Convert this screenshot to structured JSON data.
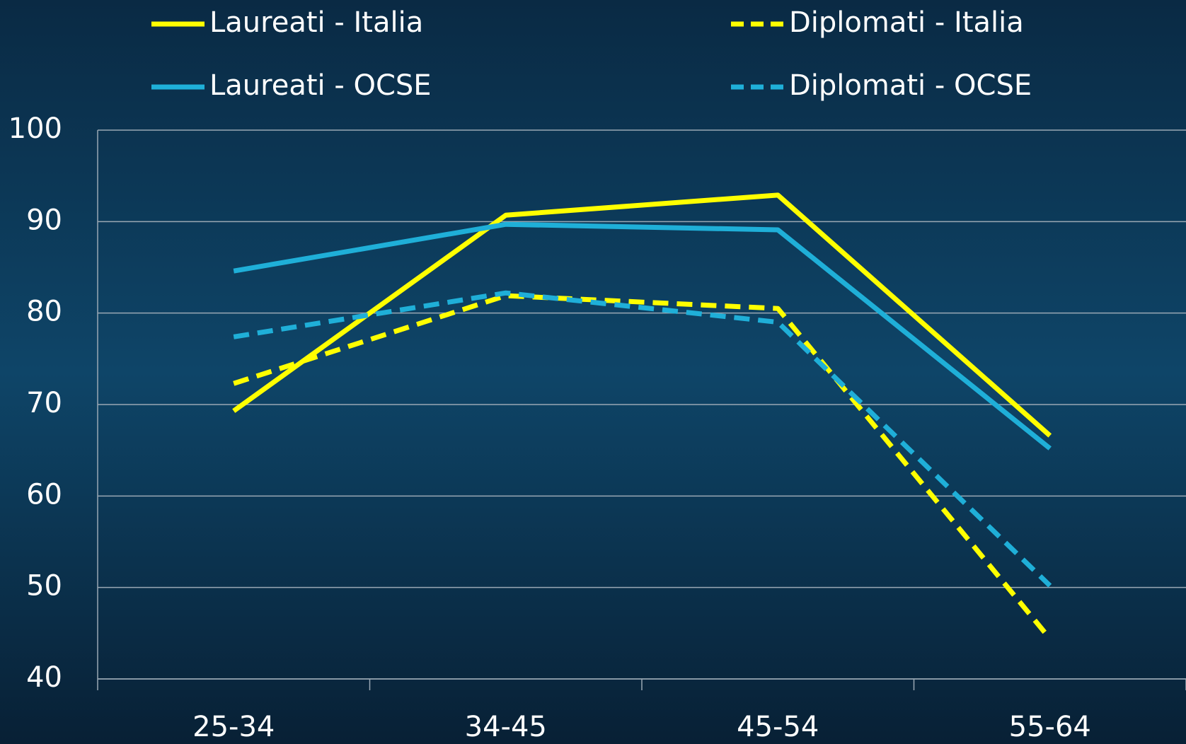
{
  "chart_data": {
    "type": "line",
    "categories": [
      "25-34",
      "34-45",
      "45-54",
      "55-64"
    ],
    "series": [
      {
        "name": "Laureati - Italia",
        "color": "#ffff00",
        "dashed": false,
        "values": [
          69.3,
          90.7,
          92.9,
          66.6
        ]
      },
      {
        "name": "Diplomati - Italia",
        "color": "#ffff00",
        "dashed": true,
        "values": [
          72.3,
          81.9,
          80.5,
          44.4
        ]
      },
      {
        "name": "Laureati - OCSE",
        "color": "#1fafd8",
        "dashed": false,
        "values": [
          84.6,
          89.7,
          89.1,
          65.2
        ]
      },
      {
        "name": "Diplomati - OCSE",
        "color": "#1fafd8",
        "dashed": true,
        "values": [
          77.4,
          82.2,
          79.0,
          50.2
        ]
      }
    ],
    "ylim": [
      40,
      100
    ],
    "yticks": [
      40,
      50,
      60,
      70,
      80,
      90,
      100
    ],
    "grid": true,
    "legend": "top"
  }
}
